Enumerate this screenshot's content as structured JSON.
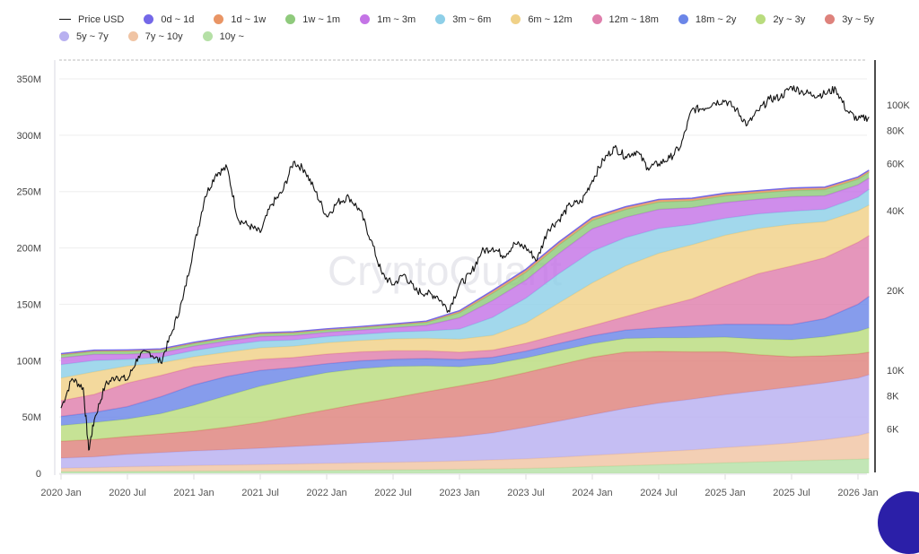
{
  "chart_data": {
    "type": "area",
    "title": "",
    "watermark": "CryptoQuant",
    "xlabel": "",
    "ylabel": "",
    "x_ticks": [
      "2020 Jan",
      "2020 Jul",
      "2021 Jan",
      "2021 Jul",
      "2022 Jan",
      "2022 Jul",
      "2023 Jan",
      "2023 Jul",
      "2024 Jan",
      "2024 Jul",
      "2025 Jan",
      "2025 Jul",
      "2026 Jan"
    ],
    "y_left": {
      "ticks": [
        "0",
        "50M",
        "100M",
        "150M",
        "200M",
        "250M",
        "300M",
        "350M"
      ],
      "range": [
        0,
        350000000
      ],
      "scale": "linear"
    },
    "y_right": {
      "ticks": [
        "6K",
        "8K",
        "10K",
        "20K",
        "40K",
        "60K",
        "80K",
        "100K"
      ],
      "tick_values": [
        6000,
        8000,
        10000,
        20000,
        40000,
        60000,
        80000,
        100000
      ],
      "range": [
        4000,
        130000
      ],
      "scale": "log"
    },
    "grid": true,
    "legend_position": "top",
    "x_months": [
      0,
      3,
      6,
      9,
      12,
      15,
      18,
      21,
      24,
      27,
      30,
      33,
      36,
      39,
      42,
      45,
      48,
      51,
      54,
      57,
      60,
      63,
      66,
      69,
      72,
      73
    ],
    "x_months_note": "months since 2020 Jan",
    "stacked": true,
    "series": [
      {
        "name": "10y ~",
        "color": "#b5e0a6",
        "values": [
          1.5,
          1.6,
          1.7,
          1.8,
          1.9,
          2.0,
          2.2,
          2.4,
          2.6,
          2.8,
          3.0,
          3.2,
          3.5,
          3.9,
          4.3,
          5.0,
          6.0,
          6.8,
          7.6,
          8.4,
          9.3,
          10.2,
          11.0,
          11.8,
          12.5,
          13.0
        ]
      },
      {
        "name": "7y ~ 10y",
        "color": "#f0c4a4",
        "values": [
          3.0,
          3.5,
          4.2,
          4.6,
          5.0,
          5.3,
          5.6,
          5.9,
          6.2,
          6.5,
          6.8,
          7.1,
          7.5,
          8.0,
          8.6,
          9.3,
          10.0,
          10.8,
          11.6,
          12.4,
          13.5,
          14.5,
          16.0,
          18.0,
          21.0,
          23.0
        ]
      },
      {
        "name": "5y ~ 7y",
        "color": "#b8b0f0",
        "values": [
          9.0,
          9.5,
          11.0,
          12.0,
          13.0,
          13.7,
          14.5,
          15.5,
          16.5,
          17.5,
          18.5,
          20.0,
          21.5,
          24.0,
          28.0,
          32.0,
          36.0,
          40.0,
          43.0,
          45.0,
          47.0,
          48.5,
          49.5,
          50.5,
          51.0,
          51.5
        ]
      },
      {
        "name": "3y ~ 5y",
        "color": "#de827c",
        "values": [
          15.0,
          15.5,
          15.8,
          16.5,
          17.5,
          20.0,
          23.0,
          27.0,
          31.0,
          35.0,
          38.5,
          42.0,
          45.0,
          47.0,
          48.5,
          50.0,
          51.0,
          50.0,
          46.0,
          42.0,
          38.0,
          32.0,
          27.0,
          24.0,
          21.5,
          20.0
        ]
      },
      {
        "name": "2y ~ 3y",
        "color": "#b9dc7e",
        "values": [
          14.0,
          15.0,
          15.5,
          18.0,
          23.0,
          28.0,
          32.0,
          33.0,
          33.0,
          31.0,
          28.0,
          23.0,
          17.0,
          14.0,
          13.0,
          12.5,
          12.0,
          12.0,
          12.0,
          12.5,
          13.0,
          14.0,
          15.0,
          17.0,
          20.0,
          21.5
        ]
      },
      {
        "name": "18m ~ 2y",
        "color": "#6b86e8",
        "values": [
          8.0,
          9.0,
          11.0,
          15.0,
          18.0,
          17.0,
          14.0,
          10.0,
          8.0,
          7.0,
          6.5,
          6.5,
          6.5,
          6.0,
          6.0,
          6.5,
          7.0,
          7.5,
          9.0,
          10.5,
          11.5,
          13.0,
          13.5,
          16.0,
          24.0,
          28.0
        ]
      },
      {
        "name": "12m ~ 18m",
        "color": "#df7fac",
        "values": [
          14.0,
          16.0,
          21.0,
          19.0,
          16.0,
          12.0,
          10.0,
          9.0,
          8.5,
          8.0,
          7.5,
          7.0,
          6.5,
          6.5,
          7.0,
          8.0,
          9.0,
          12.0,
          18.0,
          24.0,
          34.0,
          45.0,
          52.0,
          54.0,
          55.0,
          54.0
        ]
      },
      {
        "name": "6m ~ 12m",
        "color": "#f0d188",
        "values": [
          20.0,
          20.0,
          15.0,
          11.0,
          9.0,
          9.5,
          10.0,
          10.0,
          10.0,
          10.0,
          10.5,
          11.0,
          11.5,
          13.0,
          18.0,
          28.0,
          38.0,
          45.0,
          48.0,
          48.0,
          45.0,
          40.0,
          37.0,
          32.0,
          28.0,
          27.0
        ]
      },
      {
        "name": "3m ~ 6m",
        "color": "#8ecfe8",
        "values": [
          12.0,
          10.0,
          6.0,
          5.0,
          5.5,
          6.0,
          6.0,
          5.5,
          5.5,
          5.5,
          6.0,
          6.5,
          9.0,
          16.0,
          22.0,
          26.0,
          28.0,
          25.0,
          22.0,
          18.0,
          15.0,
          13.0,
          11.5,
          11.0,
          12.0,
          14.0
        ]
      },
      {
        "name": "1m ~ 3m",
        "color": "#c474e6",
        "values": [
          6.0,
          5.5,
          4.5,
          4.0,
          4.0,
          4.0,
          4.0,
          4.0,
          3.8,
          3.8,
          4.0,
          5.0,
          10.0,
          15.0,
          16.0,
          18.0,
          20.0,
          18.0,
          17.0,
          15.0,
          14.0,
          13.0,
          13.0,
          12.0,
          11.0,
          10.0
        ]
      },
      {
        "name": "1w ~ 1m",
        "color": "#8fca7c",
        "values": [
          2.5,
          2.5,
          2.5,
          2.3,
          2.2,
          2.2,
          2.2,
          2.1,
          2.0,
          2.0,
          2.1,
          2.5,
          4.5,
          6.5,
          7.0,
          7.5,
          7.5,
          7.0,
          6.5,
          6.0,
          6.0,
          5.5,
          5.5,
          5.5,
          5.0,
          5.0
        ]
      },
      {
        "name": "1d ~ 1w",
        "color": "#e99565",
        "values": [
          0.8,
          0.8,
          0.9,
          0.8,
          0.8,
          0.8,
          0.8,
          0.8,
          0.7,
          0.7,
          0.8,
          0.9,
          1.3,
          1.8,
          2.0,
          2.0,
          2.0,
          1.9,
          1.8,
          1.7,
          1.7,
          1.6,
          1.6,
          1.6,
          1.5,
          1.5
        ]
      },
      {
        "name": "0d ~ 1d",
        "color": "#7468e8",
        "values": [
          0.4,
          0.4,
          0.4,
          0.4,
          0.4,
          0.4,
          0.4,
          0.4,
          0.4,
          0.4,
          0.4,
          0.4,
          0.5,
          0.6,
          0.7,
          0.7,
          0.7,
          0.6,
          0.6,
          0.6,
          0.6,
          0.6,
          0.6,
          0.6,
          0.5,
          0.5
        ]
      }
    ],
    "values_unit": "millions",
    "price_series": {
      "name": "Price USD",
      "color": "#111111",
      "axis": "right",
      "x_months": [
        0,
        1,
        2,
        2.5,
        3,
        4,
        5,
        6,
        7,
        8,
        9,
        10,
        11,
        12,
        13,
        14,
        15,
        16,
        17,
        18,
        19,
        20,
        21,
        22,
        23,
        24,
        25,
        26,
        27,
        28,
        29,
        30,
        31,
        32,
        33,
        34,
        35,
        36,
        37,
        38,
        39,
        40,
        41,
        42,
        43,
        44,
        45,
        46,
        47,
        48,
        49,
        50,
        51,
        52,
        53,
        54,
        55,
        56,
        57,
        58,
        59,
        60,
        61,
        62,
        63,
        64,
        65,
        66,
        67,
        68,
        69,
        70,
        71,
        72,
        73
      ],
      "values": [
        7200,
        9300,
        8600,
        5000,
        6500,
        8800,
        9500,
        9200,
        11300,
        11700,
        10700,
        13800,
        18500,
        29000,
        45000,
        55000,
        58000,
        37000,
        35000,
        33000,
        42000,
        47000,
        61000,
        57000,
        47000,
        38000,
        43000,
        45000,
        40000,
        31000,
        23000,
        21000,
        23000,
        20000,
        19500,
        19000,
        16800,
        21000,
        23000,
        28000,
        29000,
        27000,
        30000,
        29000,
        26000,
        34000,
        37000,
        42000,
        43000,
        52000,
        62000,
        69000,
        64000,
        67000,
        58000,
        60000,
        63000,
        70000,
        96000,
        97000,
        102000,
        104000,
        96000,
        84000,
        95000,
        105000,
        107000,
        117000,
        112000,
        109000,
        110000,
        115000,
        95000,
        88000,
        90000
      ]
    }
  },
  "legend": [
    {
      "label": "Price USD",
      "kind": "line",
      "color": "#111111"
    },
    {
      "label": "0d ~ 1d",
      "kind": "dot",
      "color": "#7468e8"
    },
    {
      "label": "1d ~ 1w",
      "kind": "dot",
      "color": "#e99565"
    },
    {
      "label": "1w ~ 1m",
      "kind": "dot",
      "color": "#8fca7c"
    },
    {
      "label": "1m ~ 3m",
      "kind": "dot",
      "color": "#c474e6"
    },
    {
      "label": "3m ~ 6m",
      "kind": "dot",
      "color": "#8ecfe8"
    },
    {
      "label": "6m ~ 12m",
      "kind": "dot",
      "color": "#f0d188"
    },
    {
      "label": "12m ~ 18m",
      "kind": "dot",
      "color": "#df7fac"
    },
    {
      "label": "18m ~ 2y",
      "kind": "dot",
      "color": "#6b86e8"
    },
    {
      "label": "2y ~ 3y",
      "kind": "dot",
      "color": "#b9dc7e"
    },
    {
      "label": "3y ~ 5y",
      "kind": "dot",
      "color": "#de827c"
    },
    {
      "label": "5y ~ 7y",
      "kind": "dot",
      "color": "#b8b0f0"
    },
    {
      "label": "7y ~ 10y",
      "kind": "dot",
      "color": "#f0c4a4"
    },
    {
      "label": "10y ~",
      "kind": "dot",
      "color": "#b5e0a6"
    }
  ]
}
